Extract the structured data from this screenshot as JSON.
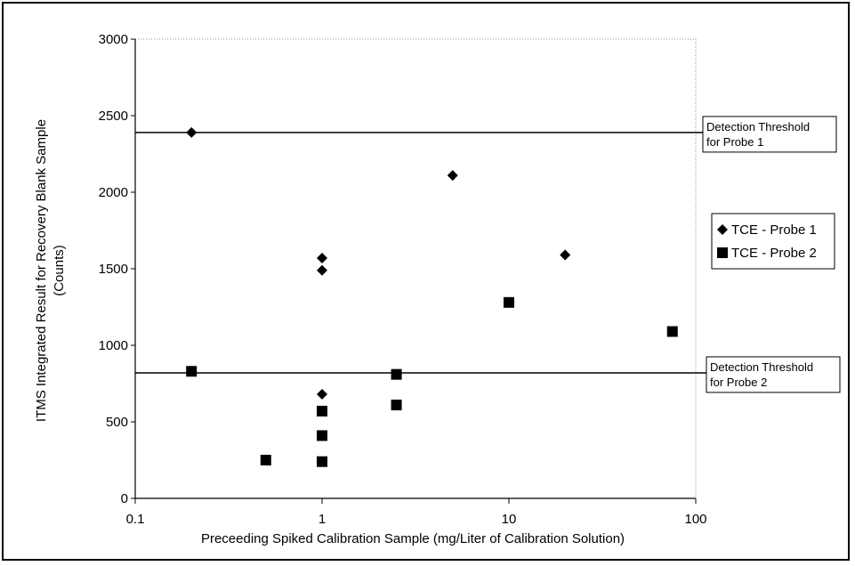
{
  "chart_data": {
    "type": "scatter",
    "xlabel": "Preceeding Spiked Calibration Sample (mg/Liter of Calibration Solution)",
    "ylabel_line1": "ITMS Integrated Result for Recovery Blank Sample",
    "ylabel_line2": "(Counts)",
    "x_scale": "log",
    "xlim": [
      0.1,
      100
    ],
    "ylim": [
      0,
      3000
    ],
    "x_ticks": [
      0.1,
      1,
      10,
      100
    ],
    "x_tick_labels": [
      "0.1",
      "1",
      "10",
      "100"
    ],
    "y_ticks": [
      0,
      500,
      1000,
      1500,
      2000,
      2500,
      3000
    ],
    "y_tick_labels": [
      "0",
      "500",
      "1000",
      "1500",
      "2000",
      "2500",
      "3000"
    ],
    "grid": false,
    "legend_position": "right",
    "series": [
      {
        "name": "TCE - Probe 1",
        "marker": "diamond",
        "color": "#000000",
        "points": [
          [
            0.2,
            2390
          ],
          [
            1,
            1570
          ],
          [
            1,
            1490
          ],
          [
            1,
            680
          ],
          [
            5,
            2110
          ],
          [
            20,
            1590
          ]
        ]
      },
      {
        "name": "TCE - Probe 2",
        "marker": "square",
        "color": "#000000",
        "points": [
          [
            0.2,
            830
          ],
          [
            0.5,
            250
          ],
          [
            1,
            570
          ],
          [
            1,
            410
          ],
          [
            1,
            240
          ],
          [
            2.5,
            810
          ],
          [
            2.5,
            610
          ],
          [
            10,
            1280
          ],
          [
            75,
            1090
          ]
        ]
      }
    ],
    "thresholds": [
      {
        "y": 2390,
        "label_line1": "Detection Threshold",
        "label_line2": "for Probe 1"
      },
      {
        "y": 820,
        "label_line1": "Detection Threshold",
        "label_line2": "for Probe 2"
      }
    ]
  }
}
